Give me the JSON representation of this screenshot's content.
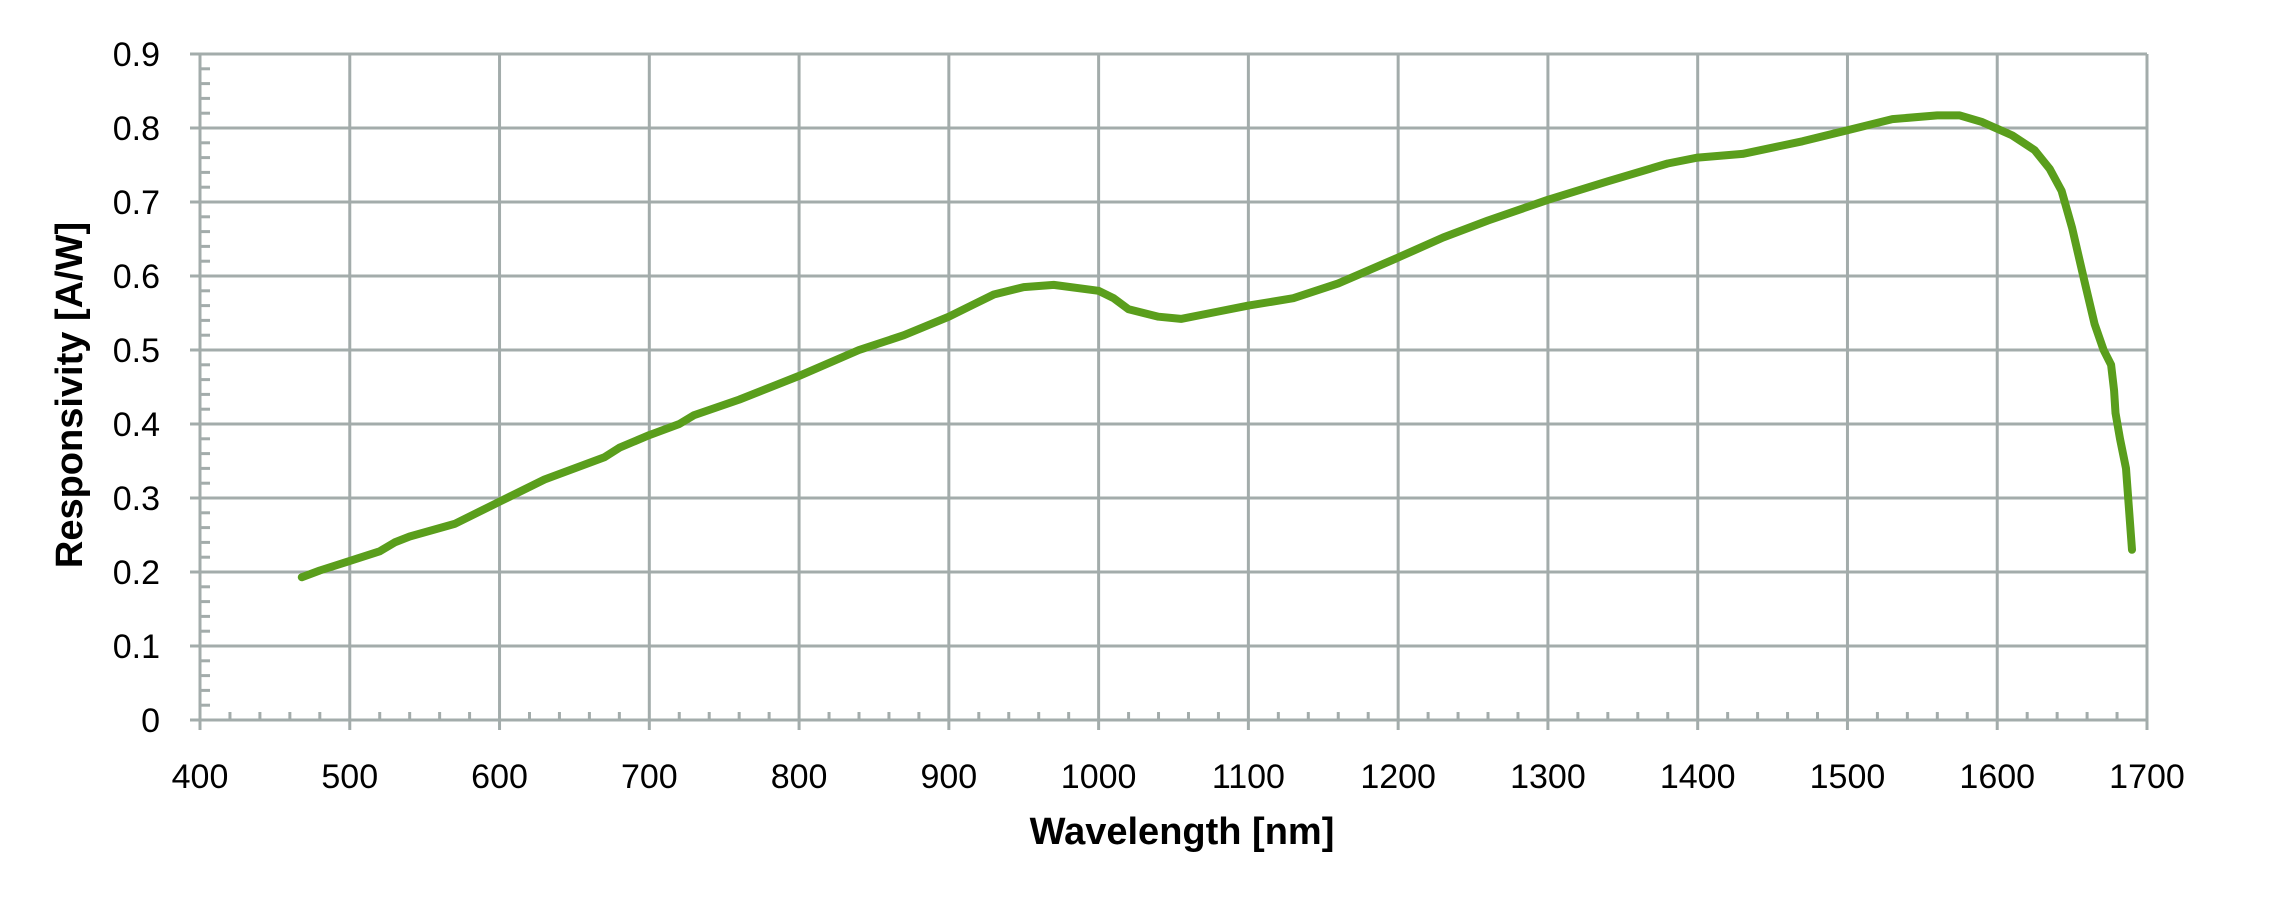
{
  "chart_data": {
    "type": "line",
    "title": "",
    "xlabel": "Wavelength [nm]",
    "ylabel": "Responsivity [A/W]",
    "xlim": [
      400,
      1700
    ],
    "ylim": [
      0,
      0.9
    ],
    "x_ticks": [
      "400",
      "500",
      "600",
      "700",
      "800",
      "900",
      "1000",
      "1100",
      "1200",
      "1300",
      "1400",
      "1500",
      "1600",
      "1700"
    ],
    "y_ticks": [
      "0",
      "0.1",
      "0.2",
      "0.3",
      "0.4",
      "0.5",
      "0.6",
      "0.7",
      "0.8",
      "0.9"
    ],
    "grid": true,
    "legend": "none",
    "series": [
      {
        "color": "#5a9e1c",
        "x": [
          468,
          480,
          500,
          520,
          530,
          540,
          570,
          600,
          630,
          670,
          680,
          700,
          720,
          730,
          760,
          800,
          840,
          870,
          900,
          915,
          930,
          950,
          970,
          1000,
          1010,
          1020,
          1040,
          1055,
          1080,
          1100,
          1130,
          1160,
          1200,
          1230,
          1260,
          1300,
          1340,
          1380,
          1400,
          1430,
          1470,
          1500,
          1530,
          1560,
          1575,
          1590,
          1610,
          1625,
          1635,
          1643,
          1650,
          1658,
          1665,
          1671,
          1676,
          1678,
          1679,
          1682,
          1686,
          1690
        ],
        "y": [
          0.193,
          0.202,
          0.215,
          0.228,
          0.24,
          0.248,
          0.265,
          0.295,
          0.325,
          0.355,
          0.368,
          0.385,
          0.4,
          0.412,
          0.433,
          0.465,
          0.5,
          0.52,
          0.545,
          0.56,
          0.575,
          0.585,
          0.588,
          0.58,
          0.57,
          0.555,
          0.545,
          0.542,
          0.552,
          0.56,
          0.57,
          0.59,
          0.625,
          0.652,
          0.675,
          0.703,
          0.728,
          0.752,
          0.76,
          0.765,
          0.782,
          0.797,
          0.812,
          0.817,
          0.817,
          0.808,
          0.79,
          0.77,
          0.745,
          0.715,
          0.665,
          0.595,
          0.535,
          0.5,
          0.48,
          0.445,
          0.415,
          0.38,
          0.34,
          0.23
        ]
      }
    ]
  }
}
